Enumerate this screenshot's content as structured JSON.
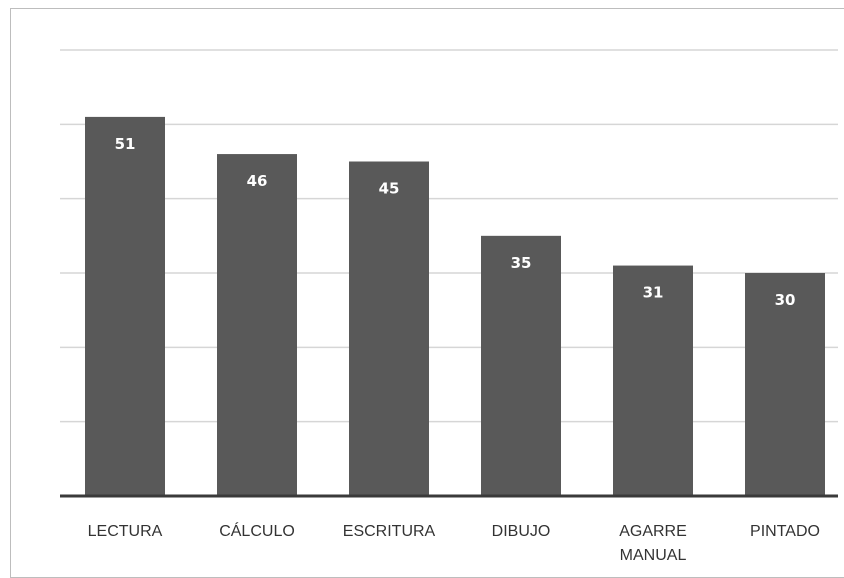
{
  "chart_data": {
    "type": "bar",
    "categories": [
      "LECTURA",
      "CÁLCULO",
      "ESCRITURA",
      "DIBUJO",
      "AGARRE MANUAL",
      "PINTADO"
    ],
    "category_lines": [
      [
        "LECTURA"
      ],
      [
        "CÁLCULO"
      ],
      [
        "ESCRITURA"
      ],
      [
        "DIBUJO"
      ],
      [
        "AGARRE",
        "MANUAL"
      ],
      [
        "PINTADO"
      ]
    ],
    "values": [
      51,
      46,
      45,
      35,
      31,
      30
    ],
    "title": "",
    "xlabel": "",
    "ylabel": "",
    "ylim": [
      0,
      60
    ],
    "grid": true,
    "grid_interval": 10,
    "data_labels": true,
    "legend": "none",
    "colors": {
      "bar": "#595959",
      "data_label": "#ffffff",
      "grid": "#d6d6d6",
      "axis": "#3a3a3a"
    }
  }
}
